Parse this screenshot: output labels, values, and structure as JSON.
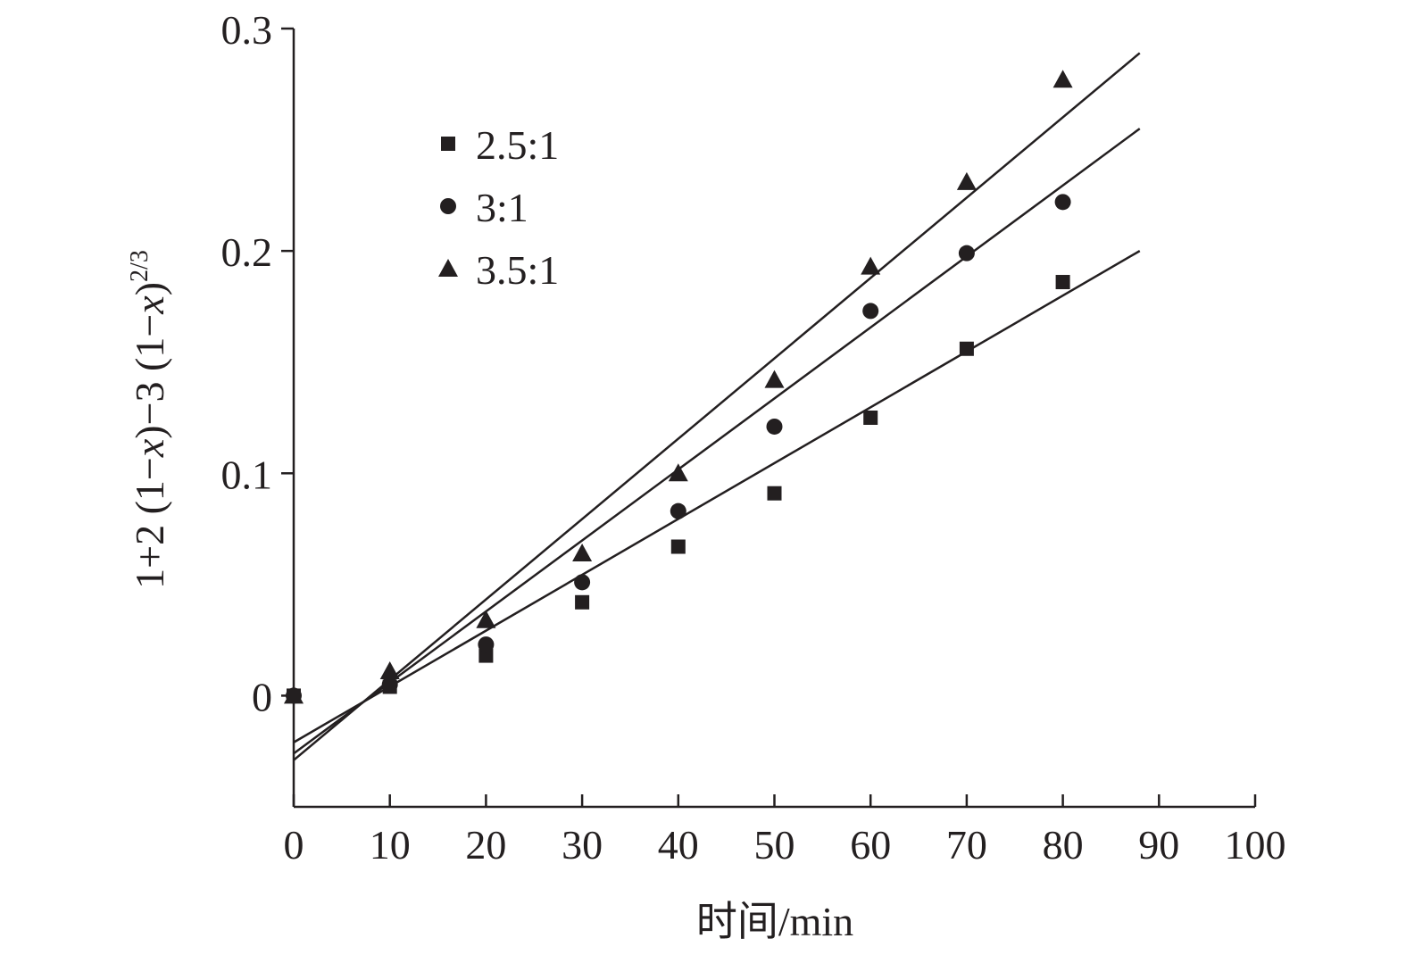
{
  "chart_data": {
    "type": "scatter",
    "xlabel": "时间/min",
    "ylabel": {
      "parts": [
        {
          "text": "1+2 (1−",
          "style": "normal"
        },
        {
          "text": "x",
          "style": "italic"
        },
        {
          "text": ")−3 (1−",
          "style": "normal"
        },
        {
          "text": "x",
          "style": "italic"
        },
        {
          "text": ")",
          "style": "normal"
        },
        {
          "text": "2/3",
          "style": "sup"
        }
      ]
    },
    "xlim": [
      0,
      100
    ],
    "ylim": [
      -0.05,
      0.3
    ],
    "x_ticks": [
      0,
      10,
      20,
      30,
      40,
      50,
      60,
      70,
      80,
      90,
      100
    ],
    "y_ticks": [
      0,
      0.1,
      0.2,
      0.3
    ],
    "x_tick_labels": [
      "0",
      "10",
      "20",
      "30",
      "40",
      "50",
      "60",
      "70",
      "80",
      "90",
      "100"
    ],
    "y_tick_labels": [
      "0",
      "0.1",
      "0.2",
      "0.3"
    ],
    "grid": false,
    "legend_position": "top-left",
    "color": "#231f20",
    "series": [
      {
        "name": "2.5:1",
        "marker": "square",
        "x": [
          0,
          10,
          20,
          30,
          40,
          50,
          60,
          70,
          80
        ],
        "y": [
          0,
          0.004,
          0.018,
          0.042,
          0.067,
          0.091,
          0.125,
          0.156,
          0.186
        ],
        "fit": {
          "x": [
            0,
            88
          ],
          "y": [
            -0.021,
            0.2
          ]
        }
      },
      {
        "name": "3:1",
        "marker": "circle",
        "x": [
          0,
          10,
          20,
          30,
          40,
          50,
          60,
          70,
          80
        ],
        "y": [
          0,
          0.005,
          0.023,
          0.051,
          0.083,
          0.121,
          0.173,
          0.199,
          0.222
        ],
        "fit": {
          "x": [
            0,
            88
          ],
          "y": [
            -0.026,
            0.255
          ]
        }
      },
      {
        "name": "3.5:1",
        "marker": "triangle",
        "x": [
          0,
          10,
          20,
          30,
          40,
          50,
          60,
          70,
          80
        ],
        "y": [
          0,
          0.011,
          0.034,
          0.064,
          0.1,
          0.142,
          0.193,
          0.231,
          0.277
        ],
        "fit": {
          "x": [
            0,
            88
          ],
          "y": [
            -0.029,
            0.289
          ]
        }
      }
    ]
  }
}
